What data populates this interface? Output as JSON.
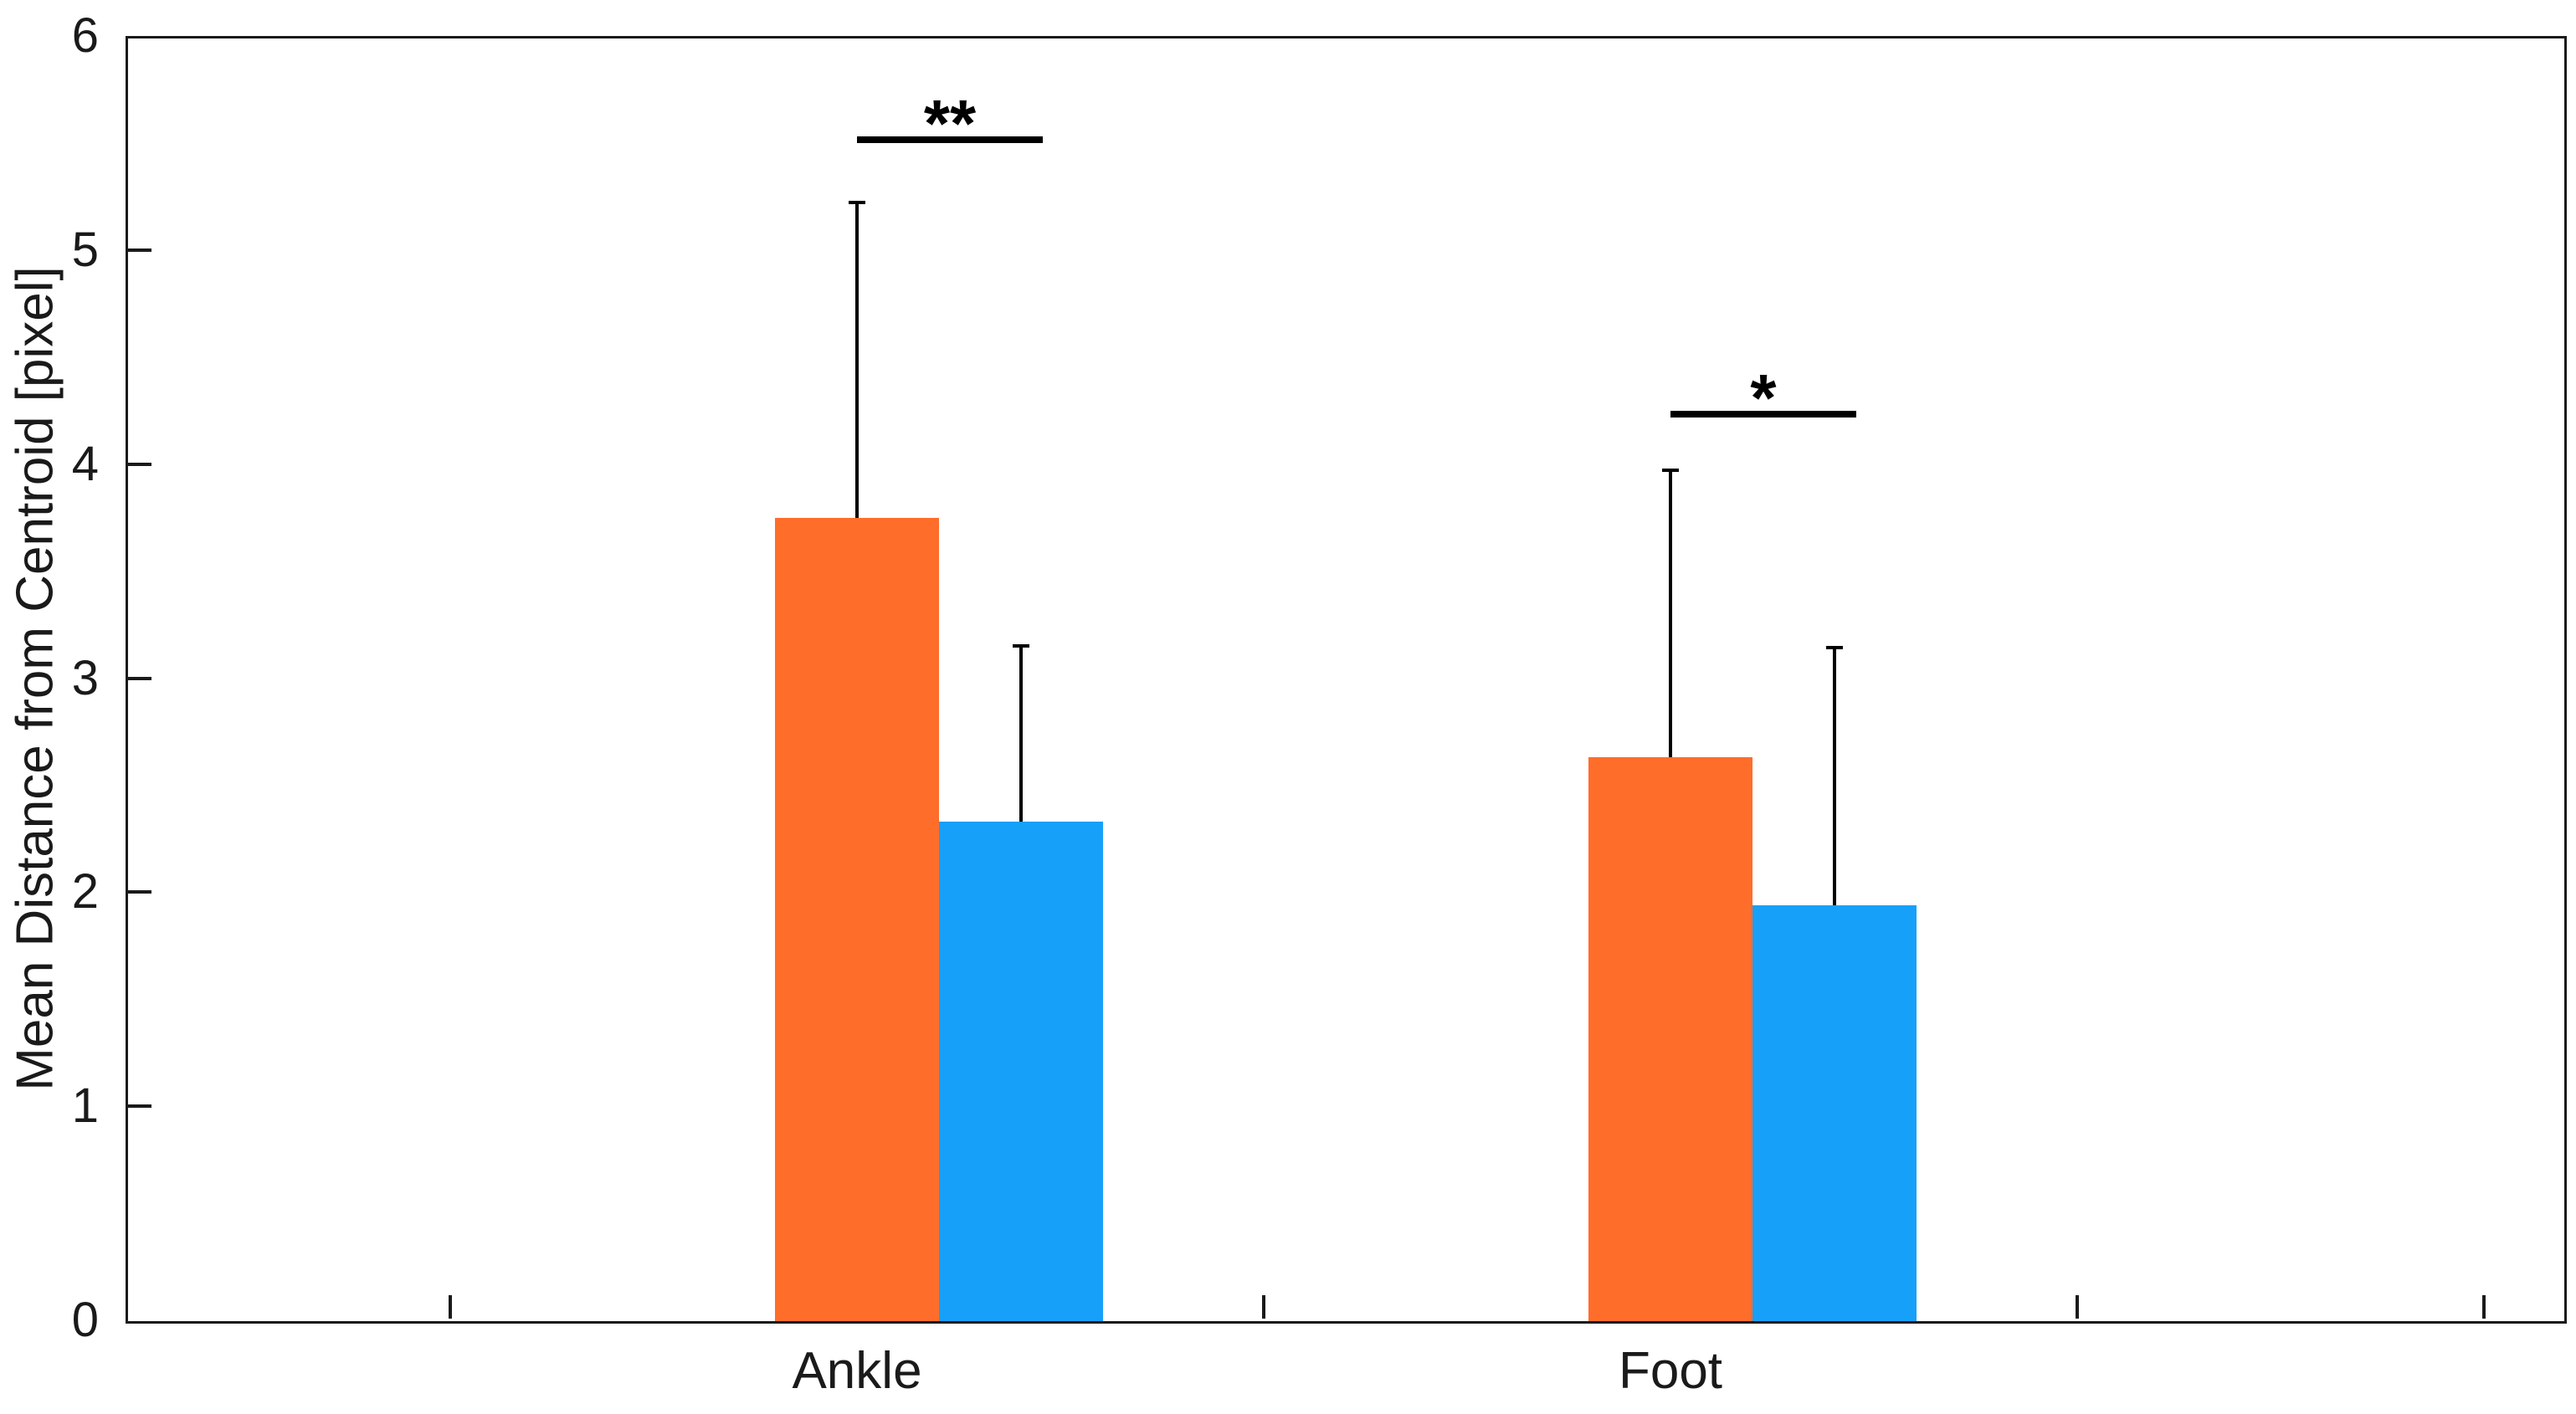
{
  "chart_data": {
    "type": "bar",
    "title": "",
    "categories": [
      "Ankle",
      "Foot"
    ],
    "series": [
      {
        "name": "orange-series",
        "color": "#FF6D2B",
        "values": [
          3.75,
          2.63
        ],
        "errors_upper": [
          1.48,
          1.35
        ]
      },
      {
        "name": "blue-series",
        "color": "#17A0FA",
        "values": [
          2.33,
          1.94
        ],
        "errors_upper": [
          0.83,
          1.21
        ]
      }
    ],
    "xlabel": "",
    "ylabel": "Mean Distance from Centroid [pixel]",
    "ylim": [
      0,
      6
    ],
    "yticks": [
      0,
      1,
      2,
      3,
      4,
      5,
      6
    ],
    "grid": false,
    "legend": null,
    "significance": [
      {
        "category": "Ankle",
        "label": "**",
        "line_y": 5.53
      },
      {
        "category": "Foot",
        "label": "*",
        "line_y": 4.25
      }
    ]
  }
}
